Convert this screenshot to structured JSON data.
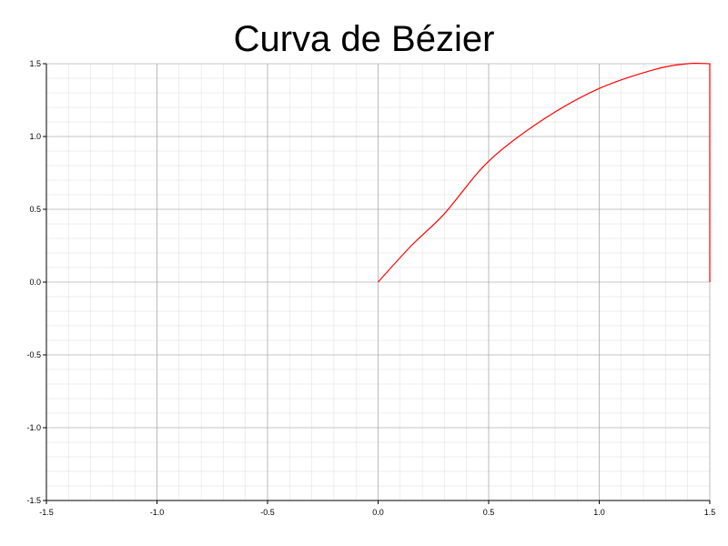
{
  "title": "Curva de Bézier",
  "chart_data": {
    "type": "line",
    "title": "Curva de Bézier",
    "xlabel": "",
    "ylabel": "",
    "xlim": [
      -1.5,
      1.5
    ],
    "ylim": [
      -1.5,
      1.5
    ],
    "x_ticks": [
      "-1.5",
      "-1.0",
      "-0.5",
      "0.0",
      "0.5",
      "1.0",
      "1.5"
    ],
    "y_ticks": [
      "1.5",
      "1.0",
      "0.5",
      "0.0",
      "-0.5",
      "-1.0",
      "-1.5"
    ],
    "grid": true,
    "series": [
      {
        "color": "#ff0000",
        "x": [
          0.0,
          0.15,
          0.3,
          0.5,
          0.75,
          1.0,
          1.25,
          1.4,
          1.5,
          1.5
        ],
        "y": [
          0.0,
          0.25,
          0.47,
          0.83,
          1.12,
          1.33,
          1.46,
          1.5,
          1.5,
          0.0
        ]
      }
    ],
    "colors": {
      "major_grid": "#999999",
      "minor_grid": "#dddddd",
      "axis": "#000000"
    }
  }
}
